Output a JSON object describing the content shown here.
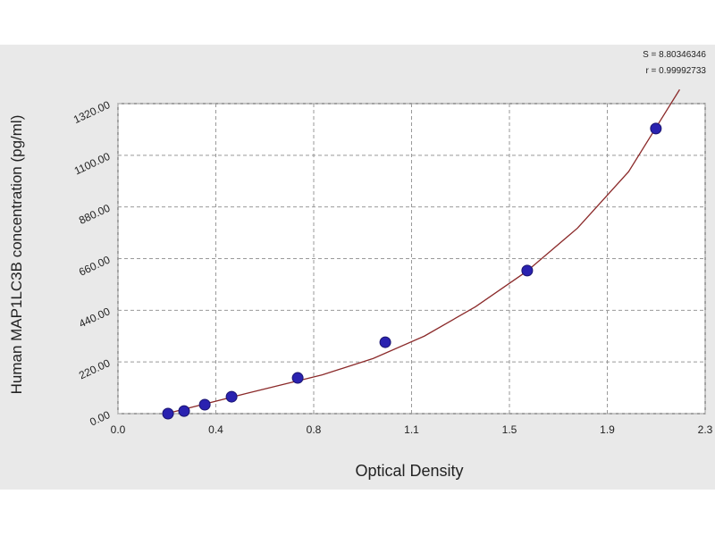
{
  "chart_data": {
    "type": "scatter",
    "annotations": [
      "S = 8.80346346",
      "r = 0.99992733"
    ],
    "x_label": "Optical Density",
    "y_label": "Human MAP1LC3B  concentration (pg/ml)",
    "x": [
      0.196,
      0.259,
      0.34,
      0.445,
      0.704,
      1.047,
      1.603,
      2.107
    ],
    "values": [
      0,
      11,
      38,
      72,
      152,
      304,
      609,
      1214
    ],
    "color": "#2a22b0",
    "curve": {
      "color": "#8b2a2a",
      "x": [
        0.19,
        0.5,
        0.8,
        1.0,
        1.2,
        1.4,
        1.6,
        1.8,
        2.0,
        2.2
      ],
      "y": [
        0,
        85,
        165,
        235,
        330,
        455,
        605,
        790,
        1030,
        1380
      ]
    },
    "xlim": [
      0,
      2.3
    ],
    "xticks": [
      {
        "value": 0,
        "label": "0.0"
      },
      {
        "value": 0.3833,
        "label": "0.4"
      },
      {
        "value": 0.7667,
        "label": "0.8"
      },
      {
        "value": 1.15,
        "label": "1.1"
      },
      {
        "value": 1.5333,
        "label": "1.5"
      },
      {
        "value": 1.9167,
        "label": "1.9"
      },
      {
        "value": 2.3,
        "label": "2.3"
      }
    ],
    "ylim": [
      0,
      1320
    ],
    "yticks": [
      {
        "value": 0,
        "label": "0.00"
      },
      {
        "value": 220,
        "label": "220.00"
      },
      {
        "value": 440,
        "label": "440.00"
      },
      {
        "value": 660,
        "label": "660.00"
      },
      {
        "value": 880,
        "label": "880.00"
      },
      {
        "value": 1100,
        "label": "1100.00"
      },
      {
        "value": 1320,
        "label": "1320.00"
      }
    ],
    "grid": true
  }
}
